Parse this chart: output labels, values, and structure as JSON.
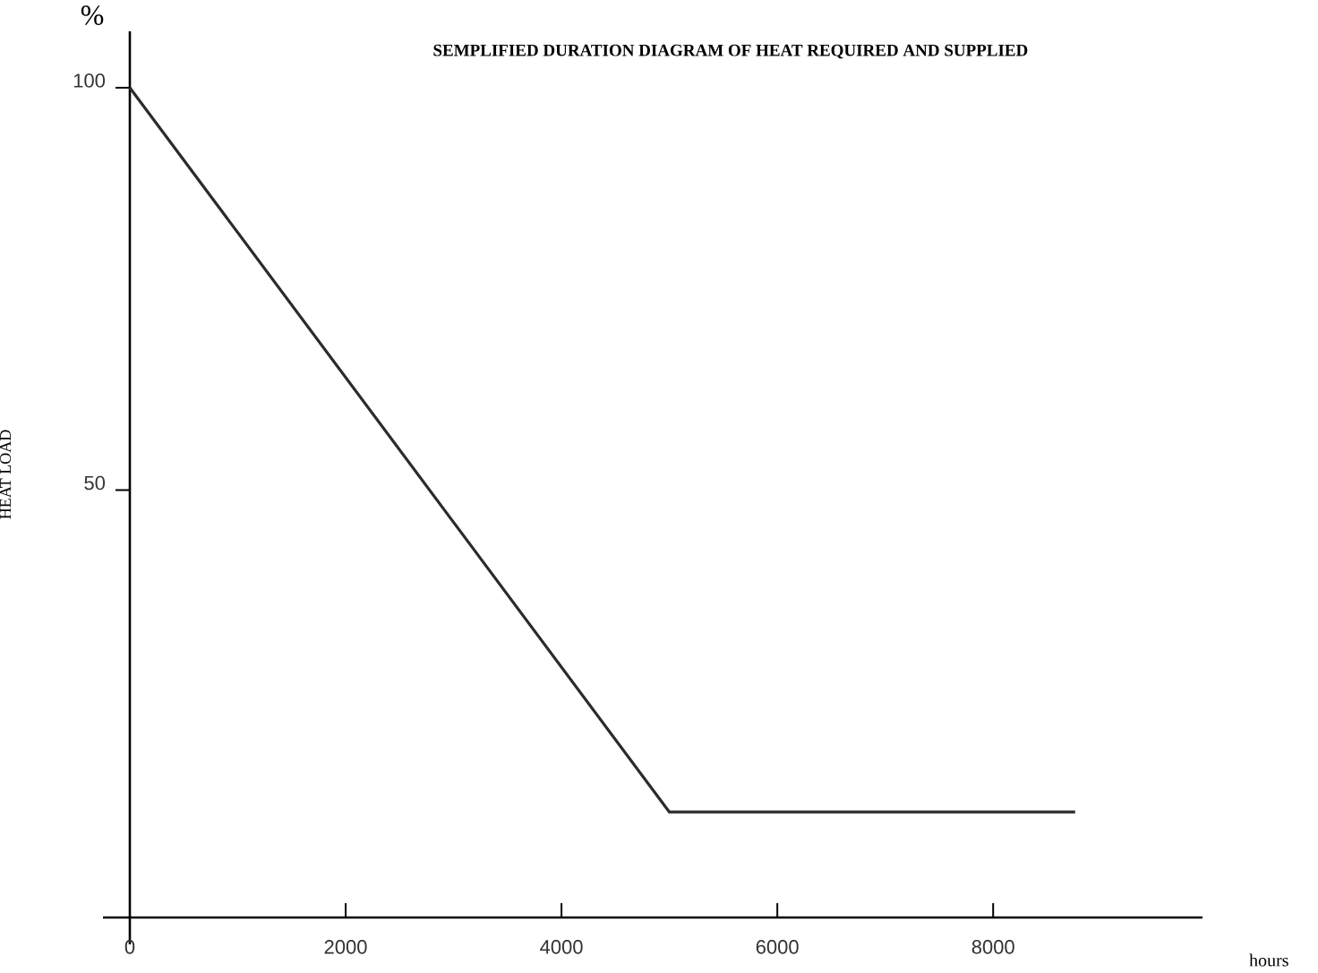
{
  "chart_data": {
    "type": "line",
    "title": "SEMPLIFIED DURATION DIAGRAM OF HEAT REQUIRED AND SUPPLIED",
    "xlabel": "hours",
    "ylabel": "HEAT LOAD",
    "annotations": [
      "%"
    ],
    "x": [
      0,
      5000,
      8760
    ],
    "values": [
      100,
      10,
      10
    ],
    "color": "#2b2b2b",
    "xlim": [
      0,
      9940
    ],
    "ylim": [
      -3.1,
      107
    ],
    "xticks": [
      0,
      2000,
      4000,
      6000,
      8000
    ],
    "yticks": [
      50,
      100
    ],
    "grid": false,
    "marker": "none",
    "line_style": "solid"
  }
}
